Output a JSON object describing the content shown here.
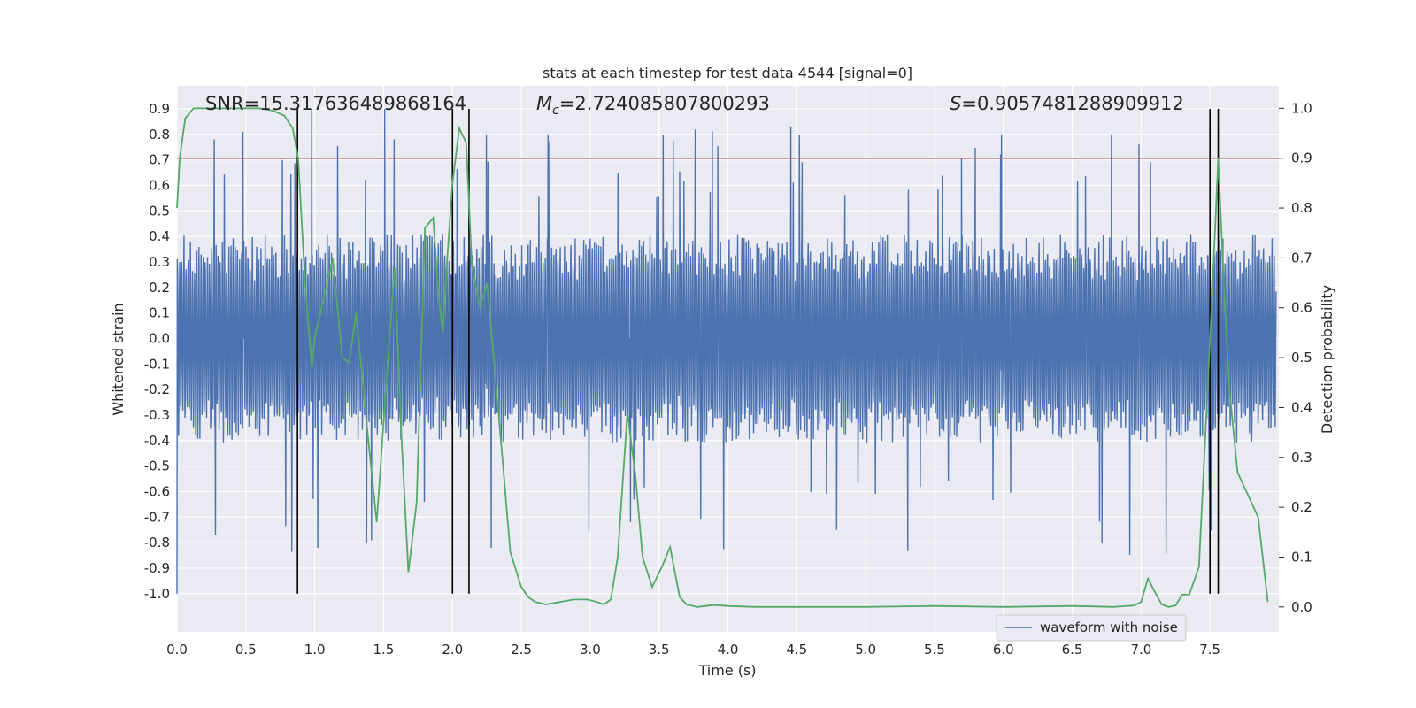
{
  "chart_data": {
    "type": "line",
    "title": "stats at each timestep for test data 4544 [signal=0]",
    "xlabel": "Time (s)",
    "ylabel_left": "Whitened strain",
    "ylabel_right": "Detection probability",
    "xlim": [
      0.0,
      8.0
    ],
    "ylim_left": [
      -1.15,
      0.99
    ],
    "ylim_right": [
      -0.05,
      1.045
    ],
    "xticks": [
      "0.0",
      "0.5",
      "1.0",
      "1.5",
      "2.0",
      "2.5",
      "3.0",
      "3.5",
      "4.0",
      "4.5",
      "5.0",
      "5.5",
      "6.0",
      "6.5",
      "7.0",
      "7.5"
    ],
    "yticks_left": [
      "0.9",
      "0.8",
      "0.7",
      "0.6",
      "0.5",
      "0.4",
      "0.3",
      "0.2",
      "0.1",
      "0.0",
      "-0.1",
      "-0.2",
      "-0.3",
      "-0.4",
      "-0.5",
      "-0.6",
      "-0.7",
      "-0.8",
      "-0.9",
      "-1.0"
    ],
    "yticks_right": [
      "1.0",
      "0.9",
      "0.8",
      "0.7",
      "0.6",
      "0.5",
      "0.4",
      "0.3",
      "0.2",
      "0.1",
      "0.0"
    ],
    "annotations": {
      "snr": "SNR=15.317636489868164",
      "mc_symbol": "M",
      "mc_sub": "c",
      "mc_value": "=2.724085807800293",
      "s_symbol": "S",
      "s_value": "=0.9057481288909912"
    },
    "threshold": {
      "value": 0.9,
      "color": "#c44e52"
    },
    "vertical_lines": [
      0.875,
      2.0,
      2.12,
      7.5,
      7.56
    ],
    "legend": {
      "label": "waveform with noise",
      "position": "lower-right"
    },
    "series": [
      {
        "name": "waveform with noise",
        "axis": "left",
        "color": "#4c72b0",
        "envelope": {
          "typical_abs": 0.42,
          "max_abs": 1.0,
          "seed": 4544
        },
        "spikes": [
          [
            0.0,
            -1.0
          ],
          [
            0.27,
            0.78
          ],
          [
            0.48,
            0.81
          ],
          [
            0.98,
            0.9
          ],
          [
            1.51,
            0.9
          ],
          [
            1.58,
            0.78
          ],
          [
            0.28,
            -0.77
          ],
          [
            1.38,
            -0.8
          ],
          [
            2.25,
            0.8
          ],
          [
            2.7,
            0.8
          ],
          [
            6.0,
            0.8
          ],
          [
            6.8,
            0.8
          ],
          [
            7.0,
            0.76
          ],
          [
            6.73,
            -0.8
          ],
          [
            4.8,
            -0.75
          ],
          [
            3.3,
            -0.72
          ]
        ]
      },
      {
        "name": "detection probability",
        "axis": "right",
        "color": "#55a868",
        "x": [
          0.0,
          0.02,
          0.06,
          0.12,
          0.2,
          0.3,
          0.4,
          0.5,
          0.6,
          0.7,
          0.78,
          0.84,
          0.88,
          0.93,
          0.98,
          1.0,
          1.05,
          1.13,
          1.2,
          1.25,
          1.3,
          1.38,
          1.45,
          1.52,
          1.58,
          1.63,
          1.68,
          1.74,
          1.8,
          1.86,
          1.9,
          1.93,
          1.96,
          2.0,
          2.05,
          2.1,
          2.14,
          2.2,
          2.25,
          2.3,
          2.35,
          2.42,
          2.5,
          2.55,
          2.6,
          2.68,
          2.78,
          2.88,
          2.98,
          3.05,
          3.1,
          3.15,
          3.2,
          3.27,
          3.33,
          3.38,
          3.45,
          3.52,
          3.58,
          3.65,
          3.7,
          3.78,
          3.9,
          4.0,
          4.2,
          4.5,
          5.0,
          5.5,
          6.0,
          6.5,
          6.8,
          6.9,
          6.95,
          7.0,
          7.05,
          7.1,
          7.15,
          7.2,
          7.25,
          7.3,
          7.35,
          7.42,
          7.48,
          7.52,
          7.56,
          7.6,
          7.64,
          7.7,
          7.85,
          7.92
        ],
        "values": [
          0.8,
          0.9,
          0.98,
          1.0,
          1.0,
          1.0,
          1.0,
          1.0,
          1.0,
          0.995,
          0.985,
          0.96,
          0.9,
          0.65,
          0.48,
          0.54,
          0.6,
          0.7,
          0.5,
          0.49,
          0.59,
          0.36,
          0.17,
          0.45,
          0.68,
          0.34,
          0.07,
          0.21,
          0.76,
          0.78,
          0.62,
          0.55,
          0.69,
          0.85,
          0.96,
          0.93,
          0.69,
          0.6,
          0.65,
          0.5,
          0.34,
          0.11,
          0.04,
          0.02,
          0.01,
          0.005,
          0.01,
          0.015,
          0.015,
          0.01,
          0.005,
          0.015,
          0.1,
          0.39,
          0.26,
          0.1,
          0.04,
          0.08,
          0.12,
          0.02,
          0.005,
          0.0,
          0.004,
          0.002,
          0.0,
          0.0,
          0.0,
          0.002,
          0.0,
          0.002,
          0.0,
          0.002,
          0.003,
          0.01,
          0.057,
          0.03,
          0.005,
          0.0,
          0.003,
          0.025,
          0.025,
          0.08,
          0.42,
          0.65,
          0.9,
          0.65,
          0.44,
          0.27,
          0.18,
          0.01
        ]
      }
    ]
  }
}
